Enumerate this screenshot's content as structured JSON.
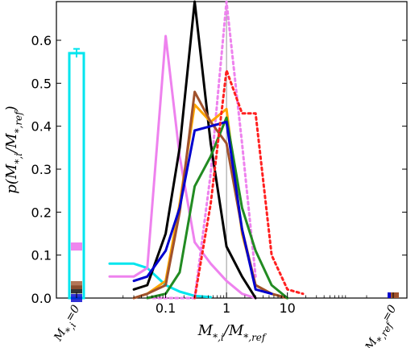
{
  "chart_data": {
    "type": "line",
    "title": "",
    "xlabel": "M_{*,i}/M_{*,ref}",
    "ylabel": "p(M_{*,i}/M_{*,ref})",
    "x_scale": "log",
    "xlim_main": [
      0.01,
      200
    ],
    "ylim": [
      0,
      0.69
    ],
    "x_ticks": [
      {
        "value": 0.1,
        "label": "0.1"
      },
      {
        "value": 1,
        "label": "1"
      },
      {
        "value": 10,
        "label": "10"
      }
    ],
    "y_ticks": [
      {
        "value": 0.0,
        "label": "0.0"
      },
      {
        "value": 0.1,
        "label": "0.1"
      },
      {
        "value": 0.2,
        "label": "0.2"
      },
      {
        "value": 0.3,
        "label": "0.3"
      },
      {
        "value": 0.4,
        "label": "0.4"
      },
      {
        "value": 0.5,
        "label": "0.5"
      },
      {
        "value": 0.6,
        "label": "0.6"
      }
    ],
    "left_category_label": "M_{*,i}=0",
    "right_category_label": "M_{*,ref}=0",
    "reference_line_x": 1,
    "grid": false,
    "legend": "none",
    "series": [
      {
        "color": "#00e5ee",
        "style": "solid",
        "x": [
          0.012,
          0.03,
          0.05,
          0.1,
          0.17,
          0.3,
          0.55
        ],
        "y": [
          0.08,
          0.08,
          0.07,
          0.03,
          0.015,
          0.005,
          0.002
        ],
        "zero_bar": 0.57,
        "zero_bar_err": 0.01
      },
      {
        "color": "#ee82ee",
        "style": "solid",
        "x": [
          0.012,
          0.03,
          0.05,
          0.1,
          0.17,
          0.3,
          0.55,
          1,
          1.8,
          3
        ],
        "y": [
          0.05,
          0.05,
          0.07,
          0.61,
          0.33,
          0.13,
          0.08,
          0.04,
          0.01,
          0.0
        ],
        "zero_marker": 0.12
      },
      {
        "color": "#ee82ee",
        "style": "dashed",
        "x": [
          0.05,
          0.1,
          0.17,
          0.3,
          0.55,
          0.75,
          1,
          1.8,
          3
        ],
        "y": [
          0.0,
          0.0,
          0.0,
          0.0,
          0.29,
          0.5,
          0.69,
          0.36,
          0.05
        ],
        "zero_marker": 0.12
      },
      {
        "color": "#000000",
        "style": "solid",
        "x": [
          0.03,
          0.05,
          0.1,
          0.17,
          0.3,
          0.55,
          1,
          1.8,
          3
        ],
        "y": [
          0.02,
          0.03,
          0.15,
          0.35,
          0.69,
          0.36,
          0.12,
          0.05,
          0.0
        ],
        "zero_marker": 0.02
      },
      {
        "color": "#ffa500",
        "style": "solid",
        "x": [
          0.03,
          0.05,
          0.1,
          0.17,
          0.3,
          0.55,
          1,
          1.8,
          3,
          5.5,
          10
        ],
        "y": [
          0.0,
          0.01,
          0.04,
          0.22,
          0.45,
          0.41,
          0.44,
          0.15,
          0.03,
          0.01,
          0.0
        ]
      },
      {
        "color": "#a0522d",
        "style": "solid",
        "x": [
          0.03,
          0.05,
          0.1,
          0.17,
          0.3,
          0.55,
          1,
          1.8,
          3,
          5.5,
          10
        ],
        "y": [
          0.0,
          0.01,
          0.03,
          0.2,
          0.48,
          0.41,
          0.36,
          0.16,
          0.03,
          0.01,
          0.0
        ],
        "zero_marker": 0.03
      },
      {
        "color": "#228b22",
        "style": "solid",
        "x": [
          0.05,
          0.1,
          0.17,
          0.3,
          0.55,
          1,
          1.8,
          3,
          5.5,
          10
        ],
        "y": [
          0.0,
          0.01,
          0.06,
          0.26,
          0.33,
          0.42,
          0.21,
          0.11,
          0.03,
          0.0
        ]
      },
      {
        "color": "#0000cd",
        "style": "solid",
        "x": [
          0.03,
          0.05,
          0.1,
          0.17,
          0.3,
          0.55,
          1,
          1.8,
          3,
          5.5
        ],
        "y": [
          0.04,
          0.05,
          0.11,
          0.21,
          0.39,
          0.4,
          0.41,
          0.16,
          0.02,
          0.01
        ],
        "zero_marker": 0.0
      },
      {
        "color": "#ff2020",
        "style": "dashed",
        "x": [
          0.3,
          0.55,
          1,
          1.8,
          3,
          5.5,
          10,
          18
        ],
        "y": [
          0.0,
          0.22,
          0.53,
          0.43,
          0.43,
          0.1,
          0.02,
          0.01
        ]
      }
    ]
  }
}
